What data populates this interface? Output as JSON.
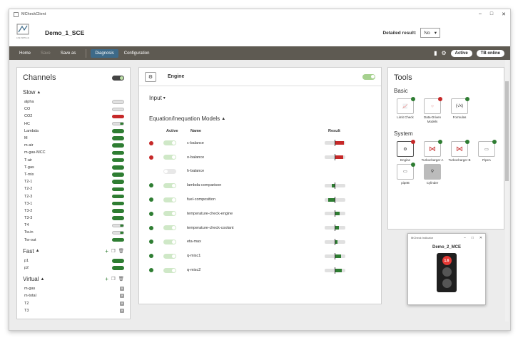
{
  "app": {
    "window_title": "MCheckClient",
    "logo_text": "LKE SMTools",
    "project": "Demo_1_SCE",
    "detailed_label": "Detailed result:",
    "detailed_value": "No"
  },
  "toolbar": {
    "home": "Home",
    "save": "Save",
    "save_as": "Save as",
    "diagnosis": "Diagnosis",
    "configuration": "Configuration",
    "status_active": "Active",
    "status_tb": "TB online"
  },
  "channels": {
    "title": "Channels",
    "slow": {
      "label": "Slow",
      "items": [
        {
          "name": "alpha",
          "state": "grey"
        },
        {
          "name": "CO",
          "state": "grey"
        },
        {
          "name": "CO2",
          "state": "red"
        },
        {
          "name": "HC",
          "state": "part"
        },
        {
          "name": "Lambda",
          "state": "green"
        },
        {
          "name": "M",
          "state": "green"
        },
        {
          "name": "m-air",
          "state": "green"
        },
        {
          "name": "m-gas-MCC",
          "state": "green"
        },
        {
          "name": "T-air",
          "state": "green"
        },
        {
          "name": "T-gas",
          "state": "green"
        },
        {
          "name": "T-mix",
          "state": "green"
        },
        {
          "name": "T2-1",
          "state": "green"
        },
        {
          "name": "T2-2",
          "state": "green"
        },
        {
          "name": "T2-3",
          "state": "green"
        },
        {
          "name": "T3-1",
          "state": "green"
        },
        {
          "name": "T3-2",
          "state": "green"
        },
        {
          "name": "T3-3",
          "state": "green"
        },
        {
          "name": "T4",
          "state": "part"
        },
        {
          "name": "Tw.in",
          "state": "part"
        },
        {
          "name": "Tw-out",
          "state": "green"
        }
      ]
    },
    "fast": {
      "label": "Fast",
      "items": [
        {
          "name": "p1",
          "state": "green"
        },
        {
          "name": "p2",
          "state": "green"
        }
      ]
    },
    "virtual": {
      "label": "Virtual",
      "items": [
        {
          "name": "m-gas"
        },
        {
          "name": "m-total"
        },
        {
          "name": "T2"
        },
        {
          "name": "T3"
        }
      ]
    }
  },
  "engine": {
    "title": "Engine",
    "input_label": "Input",
    "models_label": "Equation/Inequation Models",
    "col_active": "Active",
    "col_name": "Name",
    "col_result": "Result",
    "models": [
      {
        "name": "c-balance",
        "status": "red",
        "active": true,
        "result": 0.45,
        "result_color": "#c62828"
      },
      {
        "name": "o-balance",
        "status": "red",
        "active": true,
        "result": 0.4,
        "result_color": "#c62828"
      },
      {
        "name": "h-balance",
        "status": "none",
        "active": false,
        "result": null,
        "result_color": ""
      },
      {
        "name": "lambda-comparison",
        "status": "green",
        "active": true,
        "result": -0.15,
        "result_color": "#2e7d32"
      },
      {
        "name": "fuel-composition",
        "status": "green",
        "active": true,
        "result": -0.3,
        "result_color": "#2e7d32"
      },
      {
        "name": "temperature-check-engine",
        "status": "green",
        "active": true,
        "result": 0.25,
        "result_color": "#2e7d32"
      },
      {
        "name": "temperature-check-coolant",
        "status": "green",
        "active": true,
        "result": 0.2,
        "result_color": "#2e7d32"
      },
      {
        "name": "eta-max",
        "status": "green",
        "active": true,
        "result": 0.15,
        "result_color": "#2e7d32"
      },
      {
        "name": "q-misc1",
        "status": "green",
        "active": true,
        "result": 0.3,
        "result_color": "#2e7d32"
      },
      {
        "name": "q-misc2",
        "status": "green",
        "active": true,
        "result": 0.35,
        "result_color": "#2e7d32"
      }
    ]
  },
  "tools": {
    "title": "Tools",
    "basic_label": "Basic",
    "basic": [
      {
        "label": "Limit Check",
        "badge": "green",
        "icon": "limit-chart-icon"
      },
      {
        "label": "Data-Driven Models",
        "badge": "red",
        "icon": "scatter-chart-icon"
      },
      {
        "label": "Formulas",
        "badge": "green",
        "icon": "formula-icon"
      }
    ],
    "system_label": "System",
    "system": [
      {
        "label": "Engine",
        "badge": "red",
        "icon": "engine-icon"
      },
      {
        "label": "Turbocharger A",
        "badge": "green",
        "icon": "turbocharger-icon"
      },
      {
        "label": "Turbocharger B",
        "badge": "green",
        "icon": "turbocharger-icon"
      },
      {
        "label": "PipeA",
        "badge": "green",
        "icon": "pipe-icon"
      },
      {
        "label": "pipeB",
        "badge": "green",
        "icon": "pipe-icon"
      },
      {
        "label": "Cylinder",
        "badge": "",
        "icon": "cylinder-icon"
      }
    ]
  },
  "indicator": {
    "window_title": "MCheck Indicator",
    "name": "Demo_2_MCE",
    "value": "1.6"
  }
}
